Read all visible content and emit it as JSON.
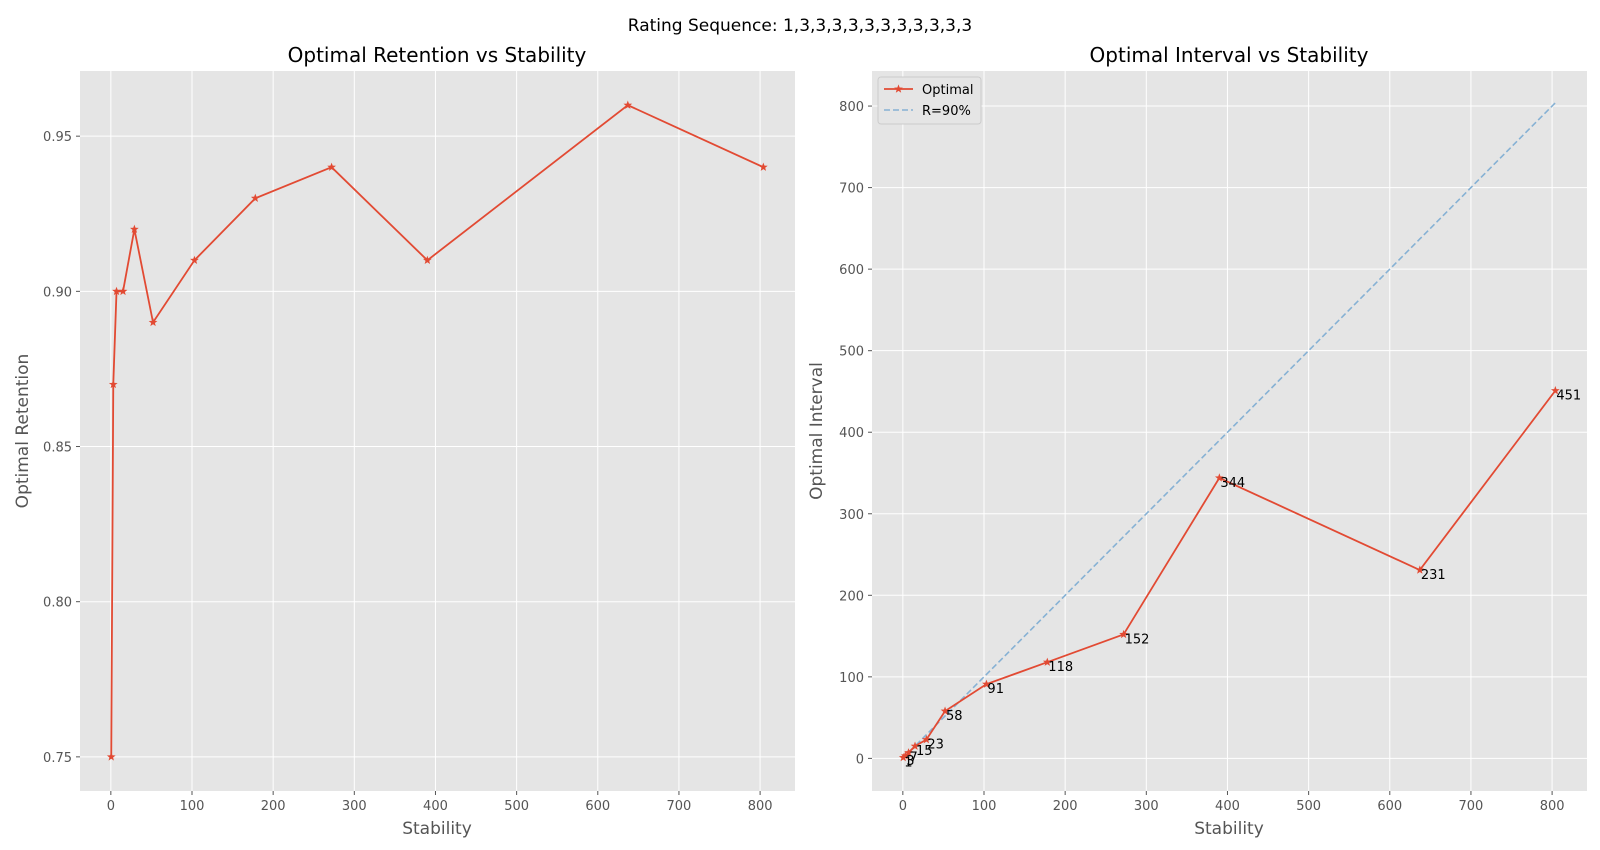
{
  "suptitle": "Rating Sequence: 1,3,3,3,3,3,3,3,3,3,3,3",
  "colors": {
    "optimal": "#e24a33",
    "reference": "#86b1d4",
    "background": "#e5e5e5"
  },
  "chart_data": [
    {
      "type": "line",
      "title": "Optimal Retention vs Stability",
      "xlabel": "Stability",
      "ylabel": "Optimal Retention",
      "xlim": [
        -38,
        843
      ],
      "ylim": [
        0.739,
        0.971
      ],
      "xticks": [
        0,
        100,
        200,
        300,
        400,
        500,
        600,
        700,
        800
      ],
      "yticks": [
        0.75,
        0.8,
        0.85,
        0.9,
        0.95
      ],
      "ytick_labels": [
        "0.75",
        "0.80",
        "0.85",
        "0.90",
        "0.95"
      ],
      "grid": true,
      "series": [
        {
          "marker": "star",
          "x": [
            0.5,
            3,
            7,
            15,
            29,
            52,
            103,
            178,
            272,
            390,
            637,
            804
          ],
          "y": [
            0.75,
            0.87,
            0.9,
            0.9,
            0.92,
            0.89,
            0.91,
            0.93,
            0.94,
            0.91,
            0.96,
            0.94
          ]
        }
      ]
    },
    {
      "type": "line",
      "title": "Optimal Interval vs Stability",
      "xlabel": "Stability",
      "ylabel": "Optimal Interval",
      "xlim": [
        -38,
        843
      ],
      "ylim": [
        -40,
        843
      ],
      "xticks": [
        0,
        100,
        200,
        300,
        400,
        500,
        600,
        700,
        800
      ],
      "yticks": [
        0,
        100,
        200,
        300,
        400,
        500,
        600,
        700,
        800
      ],
      "grid": true,
      "legend": {
        "location": "top-left",
        "entries": [
          "Optimal",
          "R=90%"
        ]
      },
      "series": [
        {
          "name": "Optimal",
          "marker": "star",
          "x": [
            0.5,
            3,
            7,
            15,
            29,
            52,
            103,
            178,
            272,
            390,
            637,
            804
          ],
          "y": [
            1,
            3,
            7,
            15,
            23,
            58,
            91,
            118,
            152,
            344,
            231,
            451
          ],
          "labels": [
            "1",
            "3",
            "7",
            "15",
            "23",
            "58",
            "91",
            "118",
            "152",
            "344",
            "231",
            "451"
          ]
        },
        {
          "name": "R=90%",
          "style": "dashed",
          "x": [
            0.5,
            3,
            7,
            15,
            29,
            52,
            103,
            178,
            272,
            390,
            637,
            804
          ],
          "y": [
            0.5,
            3,
            7,
            15,
            29,
            52,
            103,
            178,
            272,
            390,
            637,
            804
          ]
        }
      ]
    }
  ]
}
